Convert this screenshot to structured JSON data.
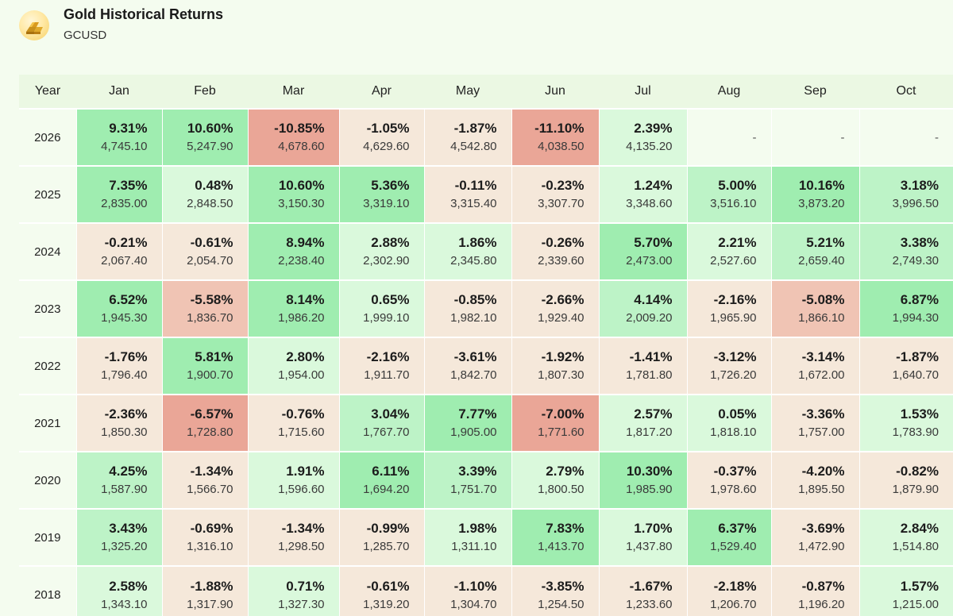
{
  "header": {
    "title": "Gold Historical Returns",
    "ticker": "GCUSD",
    "logo_icon": "gold-bars-icon"
  },
  "table": {
    "columns": [
      "Year",
      "Jan",
      "Feb",
      "Mar",
      "Apr",
      "May",
      "Jun",
      "Jul",
      "Aug",
      "Sep",
      "Oct"
    ],
    "rows": [
      {
        "year": "2026",
        "cells": [
          {
            "pct": "9.31%",
            "price": "4,745.10"
          },
          {
            "pct": "10.60%",
            "price": "5,247.90"
          },
          {
            "pct": "-10.85%",
            "price": "4,678.60"
          },
          {
            "pct": "-1.05%",
            "price": "4,629.60"
          },
          {
            "pct": "-1.87%",
            "price": "4,542.80"
          },
          {
            "pct": "-11.10%",
            "price": "4,038.50"
          },
          {
            "pct": "2.39%",
            "price": "4,135.20"
          },
          {
            "empty": "-"
          },
          {
            "empty": "-"
          },
          {
            "empty": "-"
          }
        ]
      },
      {
        "year": "2025",
        "cells": [
          {
            "pct": "7.35%",
            "price": "2,835.00"
          },
          {
            "pct": "0.48%",
            "price": "2,848.50"
          },
          {
            "pct": "10.60%",
            "price": "3,150.30"
          },
          {
            "pct": "5.36%",
            "price": "3,319.10"
          },
          {
            "pct": "-0.11%",
            "price": "3,315.40"
          },
          {
            "pct": "-0.23%",
            "price": "3,307.70"
          },
          {
            "pct": "1.24%",
            "price": "3,348.60"
          },
          {
            "pct": "5.00%",
            "price": "3,516.10"
          },
          {
            "pct": "10.16%",
            "price": "3,873.20"
          },
          {
            "pct": "3.18%",
            "price": "3,996.50"
          }
        ]
      },
      {
        "year": "2024",
        "cells": [
          {
            "pct": "-0.21%",
            "price": "2,067.40"
          },
          {
            "pct": "-0.61%",
            "price": "2,054.70"
          },
          {
            "pct": "8.94%",
            "price": "2,238.40"
          },
          {
            "pct": "2.88%",
            "price": "2,302.90"
          },
          {
            "pct": "1.86%",
            "price": "2,345.80"
          },
          {
            "pct": "-0.26%",
            "price": "2,339.60"
          },
          {
            "pct": "5.70%",
            "price": "2,473.00"
          },
          {
            "pct": "2.21%",
            "price": "2,527.60"
          },
          {
            "pct": "5.21%",
            "price": "2,659.40"
          },
          {
            "pct": "3.38%",
            "price": "2,749.30"
          }
        ]
      },
      {
        "year": "2023",
        "cells": [
          {
            "pct": "6.52%",
            "price": "1,945.30"
          },
          {
            "pct": "-5.58%",
            "price": "1,836.70"
          },
          {
            "pct": "8.14%",
            "price": "1,986.20"
          },
          {
            "pct": "0.65%",
            "price": "1,999.10"
          },
          {
            "pct": "-0.85%",
            "price": "1,982.10"
          },
          {
            "pct": "-2.66%",
            "price": "1,929.40"
          },
          {
            "pct": "4.14%",
            "price": "2,009.20"
          },
          {
            "pct": "-2.16%",
            "price": "1,965.90"
          },
          {
            "pct": "-5.08%",
            "price": "1,866.10"
          },
          {
            "pct": "6.87%",
            "price": "1,994.30"
          }
        ]
      },
      {
        "year": "2022",
        "cells": [
          {
            "pct": "-1.76%",
            "price": "1,796.40"
          },
          {
            "pct": "5.81%",
            "price": "1,900.70"
          },
          {
            "pct": "2.80%",
            "price": "1,954.00"
          },
          {
            "pct": "-2.16%",
            "price": "1,911.70"
          },
          {
            "pct": "-3.61%",
            "price": "1,842.70"
          },
          {
            "pct": "-1.92%",
            "price": "1,807.30"
          },
          {
            "pct": "-1.41%",
            "price": "1,781.80"
          },
          {
            "pct": "-3.12%",
            "price": "1,726.20"
          },
          {
            "pct": "-3.14%",
            "price": "1,672.00"
          },
          {
            "pct": "-1.87%",
            "price": "1,640.70"
          }
        ]
      },
      {
        "year": "2021",
        "cells": [
          {
            "pct": "-2.36%",
            "price": "1,850.30"
          },
          {
            "pct": "-6.57%",
            "price": "1,728.80"
          },
          {
            "pct": "-0.76%",
            "price": "1,715.60"
          },
          {
            "pct": "3.04%",
            "price": "1,767.70"
          },
          {
            "pct": "7.77%",
            "price": "1,905.00"
          },
          {
            "pct": "-7.00%",
            "price": "1,771.60"
          },
          {
            "pct": "2.57%",
            "price": "1,817.20"
          },
          {
            "pct": "0.05%",
            "price": "1,818.10"
          },
          {
            "pct": "-3.36%",
            "price": "1,757.00"
          },
          {
            "pct": "1.53%",
            "price": "1,783.90"
          }
        ]
      },
      {
        "year": "2020",
        "cells": [
          {
            "pct": "4.25%",
            "price": "1,587.90"
          },
          {
            "pct": "-1.34%",
            "price": "1,566.70"
          },
          {
            "pct": "1.91%",
            "price": "1,596.60"
          },
          {
            "pct": "6.11%",
            "price": "1,694.20"
          },
          {
            "pct": "3.39%",
            "price": "1,751.70"
          },
          {
            "pct": "2.79%",
            "price": "1,800.50"
          },
          {
            "pct": "10.30%",
            "price": "1,985.90"
          },
          {
            "pct": "-0.37%",
            "price": "1,978.60"
          },
          {
            "pct": "-4.20%",
            "price": "1,895.50"
          },
          {
            "pct": "-0.82%",
            "price": "1,879.90"
          }
        ]
      },
      {
        "year": "2019",
        "cells": [
          {
            "pct": "3.43%",
            "price": "1,325.20"
          },
          {
            "pct": "-0.69%",
            "price": "1,316.10"
          },
          {
            "pct": "-1.34%",
            "price": "1,298.50"
          },
          {
            "pct": "-0.99%",
            "price": "1,285.70"
          },
          {
            "pct": "1.98%",
            "price": "1,311.10"
          },
          {
            "pct": "7.83%",
            "price": "1,413.70"
          },
          {
            "pct": "1.70%",
            "price": "1,437.80"
          },
          {
            "pct": "6.37%",
            "price": "1,529.40"
          },
          {
            "pct": "-3.69%",
            "price": "1,472.90"
          },
          {
            "pct": "2.84%",
            "price": "1,514.80"
          }
        ]
      },
      {
        "year": "2018",
        "cells": [
          {
            "pct": "2.58%",
            "price": "1,343.10"
          },
          {
            "pct": "-1.88%",
            "price": "1,317.90"
          },
          {
            "pct": "0.71%",
            "price": "1,327.30"
          },
          {
            "pct": "-0.61%",
            "price": "1,319.20"
          },
          {
            "pct": "-1.10%",
            "price": "1,304.70"
          },
          {
            "pct": "-3.85%",
            "price": "1,254.50"
          },
          {
            "pct": "-1.67%",
            "price": "1,233.60"
          },
          {
            "pct": "-2.18%",
            "price": "1,206.70"
          },
          {
            "pct": "-0.87%",
            "price": "1,196.20"
          },
          {
            "pct": "1.57%",
            "price": "1,215.00"
          }
        ]
      }
    ]
  },
  "colors": {
    "background": "#f4fcef",
    "header_row": "#ebf8e3",
    "negative_light": "#f5e8da",
    "negative_medium": "#f0c4b4",
    "negative_strong": "#eaa697",
    "positive_light": "#daf9dc",
    "positive_medium": "#bdf3c7",
    "positive_strong": "#9fedb0"
  }
}
